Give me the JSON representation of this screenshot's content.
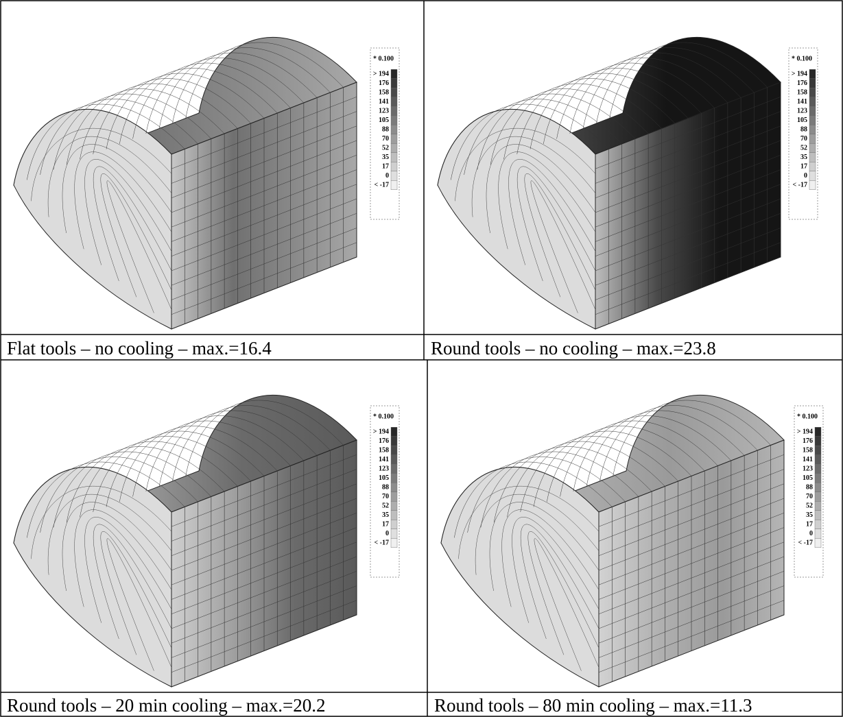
{
  "panels": [
    {
      "caption": "Flat tools – no cooling – max.=16.4",
      "legend": {
        "scale": "* 0.100",
        "labels": [
          "> 194",
          "176",
          "158",
          "141",
          "123",
          "105",
          "88",
          "70",
          "52",
          "35",
          "17",
          "0",
          "< -17"
        ]
      }
    },
    {
      "caption": "Round tools – no cooling – max.=23.8",
      "legend": {
        "scale": "* 0.100",
        "labels": [
          "> 194",
          "176",
          "158",
          "141",
          "123",
          "105",
          "88",
          "70",
          "52",
          "35",
          "17",
          "0",
          "< -17"
        ]
      }
    },
    {
      "caption": "Round tools – 20 min cooling – max.=20.2",
      "legend": {
        "scale": "* 0.100",
        "labels": [
          "> 194",
          "176",
          "158",
          "141",
          "123",
          "105",
          "88",
          "70",
          "52",
          "35",
          "17",
          "0",
          "< -17"
        ]
      }
    },
    {
      "caption": "Round tools – 80 min cooling – max.=11.3",
      "legend": {
        "scale": "* 0.100",
        "labels": [
          "> 194",
          "176",
          "158",
          "141",
          "123",
          "105",
          "88",
          "70",
          "52",
          "35",
          "17",
          "0",
          "< -17"
        ]
      }
    }
  ]
}
